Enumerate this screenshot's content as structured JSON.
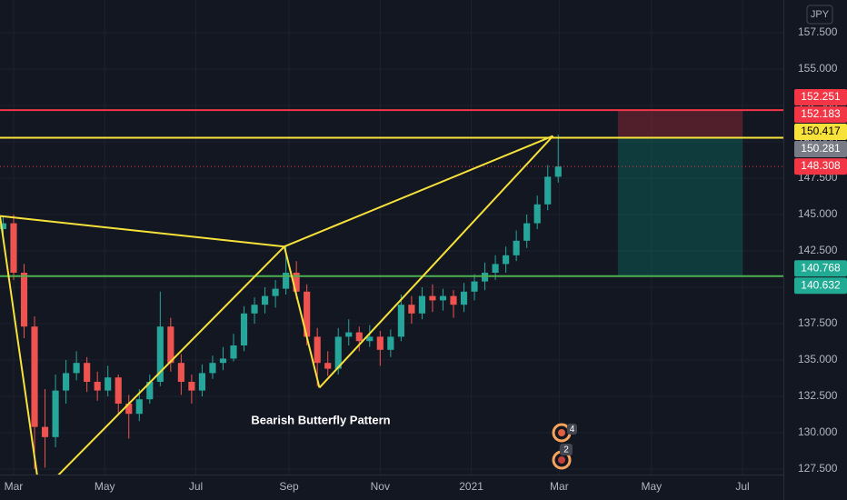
{
  "chart_data": {
    "type": "candlestick",
    "currency": "JPY",
    "annotation": "Bearish Butterfly Pattern",
    "event_badges": [
      "4",
      "2"
    ],
    "up_color": "#26a69a",
    "down_color": "#ef5350",
    "grid": true,
    "xlim": [
      -1.3,
      73.5
    ],
    "ylim": [
      127.125,
      159.75
    ],
    "xticks": [
      {
        "value": 0,
        "label": "Mar"
      },
      {
        "value": 8.7,
        "label": "May"
      },
      {
        "value": 17.4,
        "label": "Jul"
      },
      {
        "value": 26.3,
        "label": "Sep"
      },
      {
        "value": 35,
        "label": "Nov"
      },
      {
        "value": 43.7,
        "label": "2021"
      },
      {
        "value": 52.1,
        "label": "Mar"
      },
      {
        "value": 60.9,
        "label": "May"
      },
      {
        "value": 69.6,
        "label": "Jul"
      }
    ],
    "yticks": [
      {
        "value": 127.5,
        "label": "127.500"
      },
      {
        "value": 130,
        "label": "130.000"
      },
      {
        "value": 132.5,
        "label": "132.500"
      },
      {
        "value": 135,
        "label": "135.000"
      },
      {
        "value": 137.5,
        "label": "137.500"
      },
      {
        "value": 140,
        "label": "140.000"
      },
      {
        "value": 142.5,
        "label": "142.500"
      },
      {
        "value": 145,
        "label": "145.000"
      },
      {
        "value": 147.5,
        "label": "147.500"
      },
      {
        "value": 150,
        "label": "150.000"
      },
      {
        "value": 152.5,
        "label": "152.500"
      },
      {
        "value": 155,
        "label": "155.000"
      },
      {
        "value": 157.5,
        "label": "157.500"
      }
    ],
    "x": [
      -1,
      0,
      1,
      2,
      3,
      4,
      5,
      6,
      7,
      8,
      9,
      10,
      11,
      12,
      13,
      14,
      15,
      16,
      17,
      18,
      19,
      20,
      21,
      22,
      23,
      24,
      25,
      26,
      27,
      28,
      29,
      30,
      31,
      32,
      33,
      34,
      35,
      36,
      37,
      38,
      39,
      40,
      41,
      42,
      43,
      44,
      45,
      46,
      47,
      48,
      49,
      50,
      51,
      52
    ],
    "candles": [
      [
        144.0,
        144.9,
        143.5,
        144.4
      ],
      [
        144.4,
        145.0,
        140.5,
        141.0
      ],
      [
        141.0,
        141.6,
        136.5,
        137.3
      ],
      [
        137.3,
        138.0,
        127.5,
        130.4
      ],
      [
        130.4,
        133.0,
        127.6,
        129.7
      ],
      [
        129.7,
        134.0,
        129.0,
        132.9
      ],
      [
        132.9,
        135.0,
        132.0,
        134.1
      ],
      [
        134.1,
        135.6,
        133.6,
        134.8
      ],
      [
        134.8,
        135.2,
        132.8,
        133.5
      ],
      [
        133.5,
        134.2,
        132.2,
        132.9
      ],
      [
        132.9,
        134.6,
        132.5,
        133.8
      ],
      [
        133.8,
        134.0,
        131.2,
        132.0
      ],
      [
        132.0,
        132.6,
        129.6,
        131.3
      ],
      [
        131.3,
        133.0,
        130.8,
        132.3
      ],
      [
        132.3,
        134.0,
        132.0,
        133.5
      ],
      [
        133.5,
        139.7,
        133.2,
        137.3
      ],
      [
        137.3,
        137.9,
        134.2,
        134.8
      ],
      [
        134.8,
        135.4,
        132.6,
        133.5
      ],
      [
        133.5,
        134.0,
        132.0,
        132.9
      ],
      [
        132.9,
        134.7,
        132.5,
        134.1
      ],
      [
        134.1,
        135.3,
        133.7,
        134.8
      ],
      [
        134.8,
        135.9,
        134.3,
        135.1
      ],
      [
        135.1,
        136.8,
        134.9,
        136.0
      ],
      [
        136.0,
        138.7,
        135.6,
        138.2
      ],
      [
        138.2,
        139.3,
        137.5,
        138.8
      ],
      [
        138.8,
        140.0,
        138.2,
        139.4
      ],
      [
        139.4,
        140.5,
        138.6,
        139.9
      ],
      [
        139.9,
        142.9,
        139.5,
        141.0
      ],
      [
        141.0,
        141.8,
        139.2,
        139.7
      ],
      [
        139.7,
        140.2,
        136.0,
        136.6
      ],
      [
        136.6,
        137.2,
        133.2,
        134.8
      ],
      [
        134.8,
        135.6,
        133.9,
        134.4
      ],
      [
        134.4,
        137.2,
        134.0,
        136.6
      ],
      [
        136.6,
        137.8,
        136.0,
        136.9
      ],
      [
        136.9,
        137.3,
        135.6,
        136.3
      ],
      [
        136.3,
        137.4,
        135.9,
        136.6
      ],
      [
        136.6,
        137.0,
        134.6,
        135.7
      ],
      [
        135.7,
        137.1,
        135.2,
        136.6
      ],
      [
        136.6,
        139.5,
        136.3,
        138.8
      ],
      [
        138.8,
        139.4,
        137.5,
        138.2
      ],
      [
        138.2,
        140.0,
        137.8,
        139.4
      ],
      [
        139.4,
        140.2,
        138.3,
        139.1
      ],
      [
        139.1,
        139.9,
        138.4,
        139.4
      ],
      [
        139.4,
        139.8,
        137.9,
        138.8
      ],
      [
        138.8,
        140.3,
        138.3,
        139.7
      ],
      [
        139.7,
        140.9,
        139.1,
        140.4
      ],
      [
        140.4,
        141.7,
        139.8,
        141.0
      ],
      [
        141.0,
        142.2,
        140.5,
        141.6
      ],
      [
        141.6,
        142.8,
        141.0,
        142.2
      ],
      [
        142.2,
        143.9,
        141.8,
        143.2
      ],
      [
        143.2,
        145.0,
        142.7,
        144.4
      ],
      [
        144.4,
        146.3,
        144.0,
        145.7
      ],
      [
        145.7,
        148.4,
        145.3,
        147.6
      ],
      [
        147.6,
        150.5,
        147.2,
        148.3
      ]
    ],
    "pattern": {
      "color": "#f7e13b",
      "points": [
        [
          -1.3,
          144.9
        ],
        [
          2.5,
          125.8
        ],
        [
          25.85,
          142.8
        ],
        [
          29.2,
          133.1
        ],
        [
          51.5,
          150.4
        ]
      ]
    },
    "position": {
      "start": 57.7,
      "end": 69.6,
      "entry": 150.281,
      "stop": 152.183,
      "target": 140.768,
      "stop_color": "rgba(242,54,69,0.28)",
      "target_color": "rgba(8,153,129,0.28)"
    },
    "price_labels": [
      {
        "value": 152.251,
        "color": "#f23645"
      },
      {
        "value": 152.183,
        "color": "#f23645",
        "line": "solid",
        "line_color": "#f23645"
      },
      {
        "value": 150.417,
        "color": "#f7e13b",
        "text_color": "#000000"
      },
      {
        "value": 150.281,
        "color": "#787b86",
        "line": "solid",
        "line_color": "#f7e13b"
      },
      {
        "value": 148.308,
        "color": "#f23645",
        "line": "dotted",
        "line_color": "#f23645"
      },
      {
        "value": 140.768,
        "color": "#22ab94",
        "line": "solid",
        "line_color": "#4caf50"
      },
      {
        "value": 140.632,
        "color": "#22ab94"
      }
    ]
  }
}
